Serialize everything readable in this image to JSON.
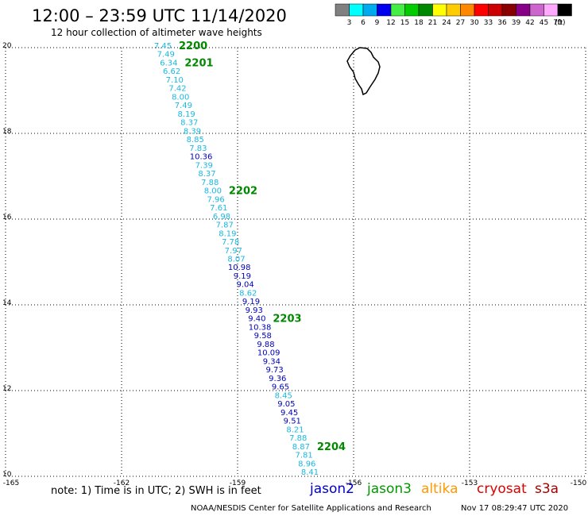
{
  "header": {
    "title": "12:00 – 23:59 UTC 11/14/2020",
    "subtitle": "12 hour collection of altimeter wave heights"
  },
  "legend": {
    "unit_label": "(ft)",
    "bins": [
      {
        "label": "3",
        "color": "#808080"
      },
      {
        "label": "6",
        "color": "#00ffff"
      },
      {
        "label": "9",
        "color": "#00aaee"
      },
      {
        "label": "12",
        "color": "#0000ee"
      },
      {
        "label": "15",
        "color": "#44ee44"
      },
      {
        "label": "18",
        "color": "#00cc00"
      },
      {
        "label": "21",
        "color": "#008800"
      },
      {
        "label": "24",
        "color": "#ffff00"
      },
      {
        "label": "27",
        "color": "#ffcc00"
      },
      {
        "label": "30",
        "color": "#ff8800"
      },
      {
        "label": "33",
        "color": "#ff0000"
      },
      {
        "label": "36",
        "color": "#cc0000"
      },
      {
        "label": "39",
        "color": "#880000"
      },
      {
        "label": "42",
        "color": "#880088"
      },
      {
        "label": "45",
        "color": "#cc66cc"
      },
      {
        "label": "70",
        "color": "#ffaaff"
      },
      {
        "label": "",
        "color": "#000000"
      }
    ]
  },
  "map": {
    "lon_range": [
      -165,
      -150
    ],
    "lat_range": [
      10,
      20
    ],
    "lon_labels": [
      "-165",
      "-162",
      "-159",
      "-156",
      "-153",
      "-150"
    ],
    "lat_labels": [
      "10",
      "12",
      "14",
      "16",
      "18",
      "20"
    ],
    "colors": {
      "cyan": "#1ab8e0",
      "navy": "#0000bb",
      "time": "#008800"
    }
  },
  "track": {
    "observations": [
      {
        "swh": "7.45",
        "c": "cyan",
        "time": "2200"
      },
      {
        "swh": "7.49",
        "c": "cyan"
      },
      {
        "swh": "6.34",
        "c": "cyan",
        "time": "2201"
      },
      {
        "swh": "6.62",
        "c": "cyan"
      },
      {
        "swh": "7.10",
        "c": "cyan"
      },
      {
        "swh": "7.42",
        "c": "cyan"
      },
      {
        "swh": "8.00",
        "c": "cyan"
      },
      {
        "swh": "7.49",
        "c": "cyan"
      },
      {
        "swh": "8.19",
        "c": "cyan"
      },
      {
        "swh": "8.37",
        "c": "cyan"
      },
      {
        "swh": "8.39",
        "c": "cyan"
      },
      {
        "swh": "8.85",
        "c": "cyan"
      },
      {
        "swh": "7.83",
        "c": "cyan"
      },
      {
        "swh": "10.36",
        "c": "navy"
      },
      {
        "swh": "7.39",
        "c": "cyan"
      },
      {
        "swh": "8.37",
        "c": "cyan"
      },
      {
        "swh": "7.88",
        "c": "cyan"
      },
      {
        "swh": "8.00",
        "c": "cyan",
        "time": "2202"
      },
      {
        "swh": "7.96",
        "c": "cyan"
      },
      {
        "swh": "7.61",
        "c": "cyan"
      },
      {
        "swh": "6.98",
        "c": "cyan"
      },
      {
        "swh": "7.87",
        "c": "cyan"
      },
      {
        "swh": "8.19",
        "c": "cyan"
      },
      {
        "swh": "7.78",
        "c": "cyan"
      },
      {
        "swh": "7.97",
        "c": "cyan"
      },
      {
        "swh": "8.07",
        "c": "cyan"
      },
      {
        "swh": "10.98",
        "c": "navy"
      },
      {
        "swh": "9.19",
        "c": "navy"
      },
      {
        "swh": "9.04",
        "c": "navy"
      },
      {
        "swh": "8.62",
        "c": "cyan"
      },
      {
        "swh": "9.19",
        "c": "navy"
      },
      {
        "swh": "9.93",
        "c": "navy"
      },
      {
        "swh": "9.40",
        "c": "navy",
        "time": "2203"
      },
      {
        "swh": "10.38",
        "c": "navy"
      },
      {
        "swh": "9.58",
        "c": "navy"
      },
      {
        "swh": "9.88",
        "c": "navy"
      },
      {
        "swh": "10.09",
        "c": "navy"
      },
      {
        "swh": "9.34",
        "c": "navy"
      },
      {
        "swh": "9.73",
        "c": "navy"
      },
      {
        "swh": "9.36",
        "c": "navy"
      },
      {
        "swh": "9.65",
        "c": "navy"
      },
      {
        "swh": "8.45",
        "c": "cyan"
      },
      {
        "swh": "9.05",
        "c": "navy"
      },
      {
        "swh": "9.45",
        "c": "navy"
      },
      {
        "swh": "9.51",
        "c": "navy"
      },
      {
        "swh": "8.21",
        "c": "cyan"
      },
      {
        "swh": "7.88",
        "c": "cyan"
      },
      {
        "swh": "8.87",
        "c": "cyan",
        "time": "2204"
      },
      {
        "swh": "7.81",
        "c": "cyan"
      },
      {
        "swh": "8.96",
        "c": "cyan"
      },
      {
        "swh": "8.41",
        "c": "cyan"
      }
    ]
  },
  "footer": {
    "note": "note:  1) Time is in UTC;  2) SWH is in feet",
    "satellites": [
      {
        "name": "jason2",
        "color": "#0000cc"
      },
      {
        "name": "jason3",
        "color": "#009900"
      },
      {
        "name": "altika",
        "color": "#ff9900"
      },
      {
        "name": "cryosat",
        "color": "#dd0000"
      },
      {
        "name": "s3a",
        "color": "#aa0000"
      }
    ],
    "credit": "NOAA/NESDIS Center for Satellite Applications and Research",
    "timestamp": "Nov 17 08:29:47 UTC 2020"
  }
}
